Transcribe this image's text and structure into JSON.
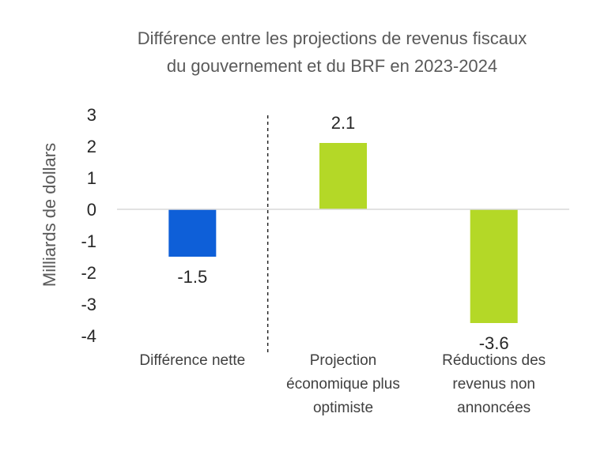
{
  "chart_data": {
    "type": "bar",
    "title_lines": [
      "Différence entre les projections de revenus fiscaux",
      "du gouvernement et du BRF en 2023-2024"
    ],
    "ylabel": "Milliards de dollars",
    "ylim": [
      -4,
      3
    ],
    "yticks": [
      "3",
      "2",
      "1",
      "0",
      "-1",
      "-2",
      "-3",
      "-4"
    ],
    "ytick_values": [
      3,
      2,
      1,
      0,
      -1,
      -2,
      -3,
      -4
    ],
    "categories": [
      [
        "Différence nette"
      ],
      [
        "Projection",
        "économique plus",
        "optimiste"
      ],
      [
        "Réductions des",
        "revenus non",
        "annoncées"
      ]
    ],
    "values": [
      -1.5,
      2.1,
      -3.6
    ],
    "data_labels": [
      "-1.5",
      "2.1",
      "-3.6"
    ],
    "colors": [
      "#0E5FD8",
      "#B4D827",
      "#B4D827"
    ],
    "axis_color": "#D9D9D9",
    "separator": "dashed line between first and second category",
    "grid": false,
    "legend": "none"
  }
}
